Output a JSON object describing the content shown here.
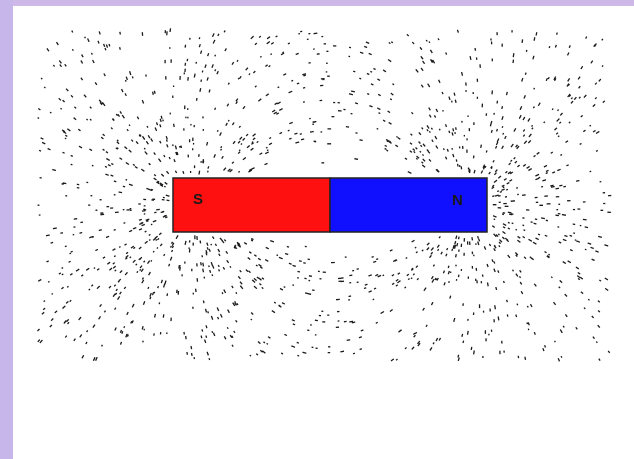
{
  "magnet": {
    "south_label": "S",
    "north_label": "N"
  }
}
